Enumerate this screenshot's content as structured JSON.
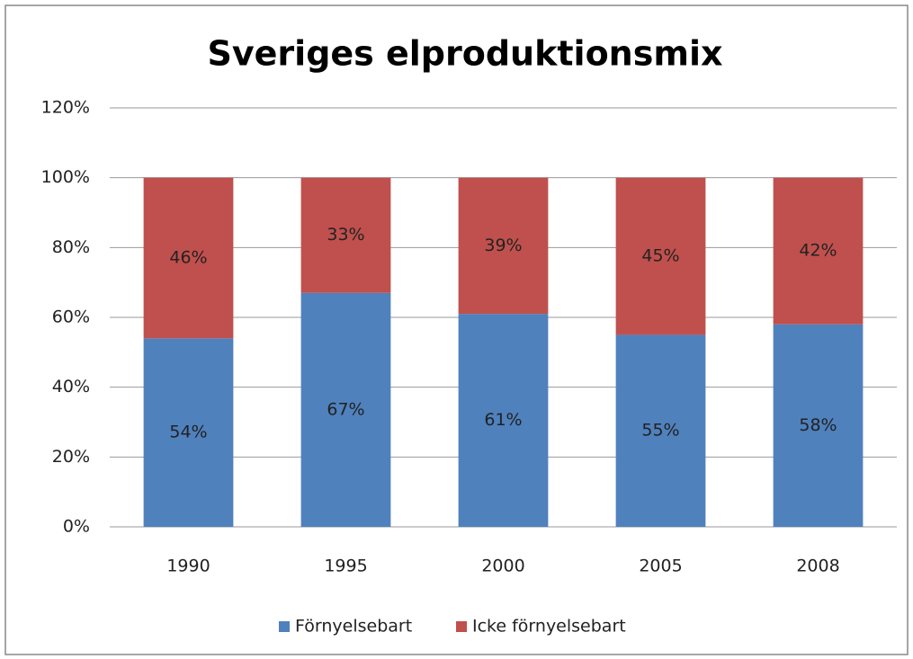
{
  "chart_data": {
    "type": "stacked_bar",
    "title": "Sveriges elproduktionsmix",
    "categories": [
      "1990",
      "1995",
      "2000",
      "2005",
      "2008"
    ],
    "series": [
      {
        "name": "Förnyelsebart",
        "color": "#4f81bd",
        "values": [
          54,
          67,
          61,
          55,
          58
        ],
        "value_labels": [
          "54%",
          "67%",
          "61%",
          "55%",
          "58%"
        ]
      },
      {
        "name": "Icke förnyelsebart",
        "color": "#c0504d",
        "values": [
          46,
          33,
          39,
          45,
          42
        ],
        "value_labels": [
          "46%",
          "33%",
          "39%",
          "45%",
          "42%"
        ]
      }
    ],
    "ylim": [
      0,
      120
    ],
    "yticks": [
      {
        "value": 0,
        "label": "0%"
      },
      {
        "value": 20,
        "label": "20%"
      },
      {
        "value": 40,
        "label": "40%"
      },
      {
        "value": 60,
        "label": "60%"
      },
      {
        "value": 80,
        "label": "80%"
      },
      {
        "value": 100,
        "label": "100%"
      },
      {
        "value": 120,
        "label": "120%"
      }
    ],
    "grid": true,
    "legend": "bottom"
  }
}
